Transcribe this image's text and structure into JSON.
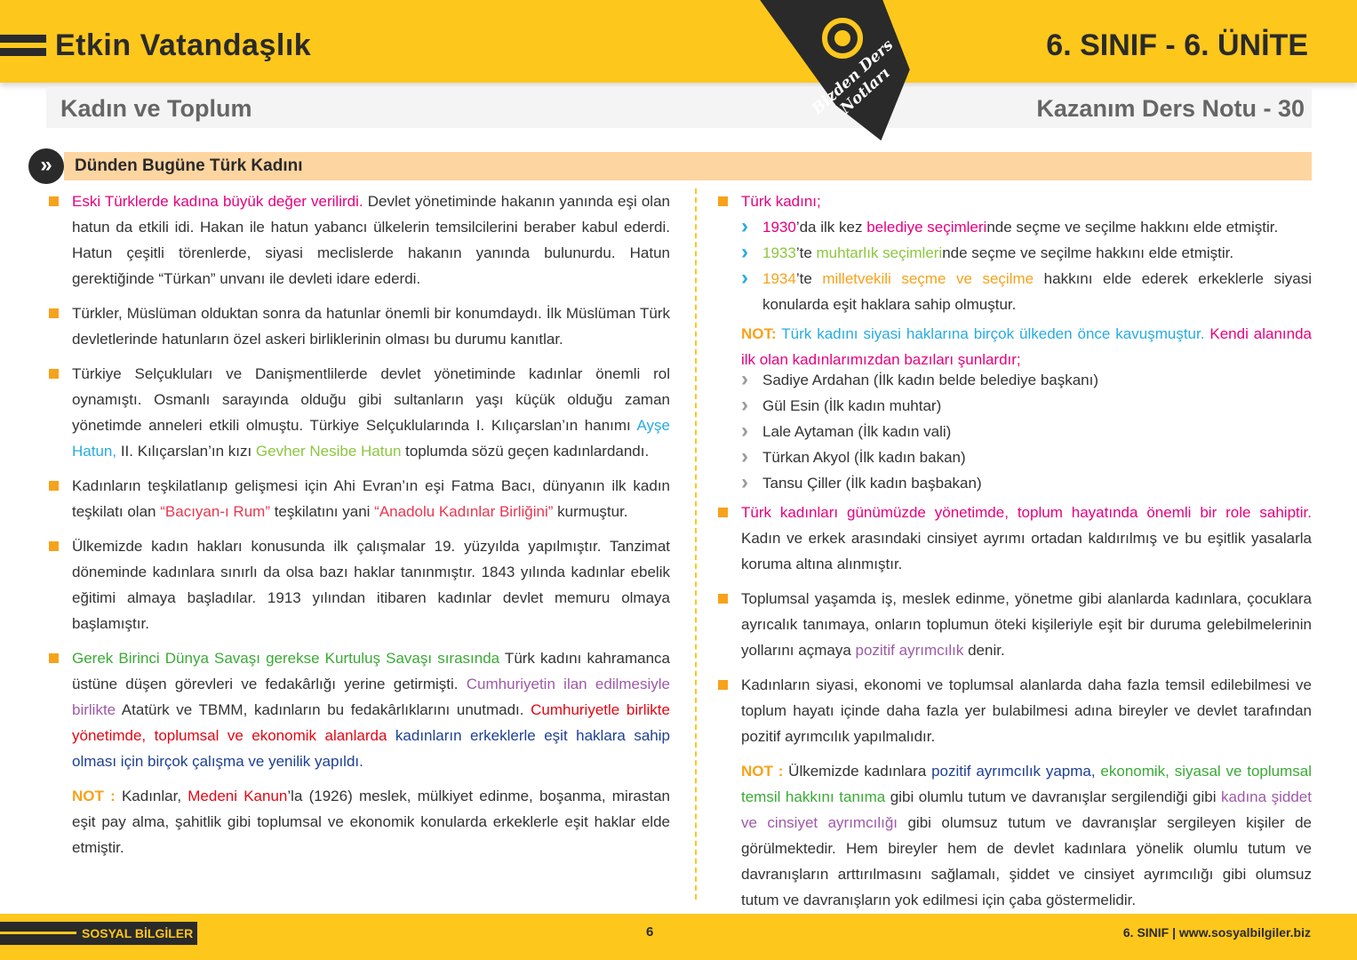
{
  "palette": {
    "pink": "#e6007e",
    "cyan": "#29abe2",
    "lgreen": "#8dc63f",
    "red": "#e8364f",
    "green": "#3aaa35",
    "purple": "#9e5aa8",
    "crimson": "#e30613",
    "navy": "#1d3f94",
    "orange": "#f7a21b",
    "text": "#333333",
    "accent": "#fdc71c"
  },
  "header": {
    "title": "Etkin Vatandaşlık",
    "unit": "6. SINIF - 6. ÜNİTE",
    "subtitle": "Kadın ve Toplum",
    "note_number": "Kazanım Ders Notu - 30",
    "badge": "Bizden Ders Notları"
  },
  "section": {
    "icon": "double-chevron-right-icon",
    "title": "Dünden Bugüne Türk Kadını"
  },
  "left": [
    {
      "type": "bullet",
      "segs": [
        {
          "t": "Eski Türklerde kadına büyük değer verilirdi.",
          "c": "pink"
        },
        {
          "t": " Devlet yönetiminde hakanın yanında eşi olan hatun da etkili idi. Hakan ile hatun yabancı ülkelerin temsilcilerini beraber kabul ederdi. Hatun çeşitli törenlerde, siyasi meclislerde hakanın yanında bulunurdu. Hatun gerektiğinde “Türkan” unvanı ile devleti idare ederdi."
        }
      ]
    },
    {
      "type": "bullet",
      "segs": [
        {
          "t": "Türkler, Müslüman olduktan sonra da hatunlar önemli bir konumdaydı. İlk Müslüman Türk devletlerinde hatunların özel askeri birliklerinin olması bu durumu kanıtlar."
        }
      ]
    },
    {
      "type": "bullet",
      "segs": [
        {
          "t": "Türkiye Selçukluları ve Danişmentlilerde devlet yönetiminde kadınlar önemli rol oynamıştı. Osmanlı sarayında olduğu gibi sultanların yaşı küçük olduğu zaman yönetimde anneleri etkili olmuştu. Türkiye Selçuklularında I. Kılıçarslan’ın hanımı "
        },
        {
          "t": "Ayşe Hatun,",
          "c": "cyan"
        },
        {
          "t": " II. Kılıçarslan’ın kızı "
        },
        {
          "t": "Gevher Nesibe Hatun",
          "c": "lgreen"
        },
        {
          "t": " toplumda sözü geçen kadınlardandı."
        }
      ]
    },
    {
      "type": "bullet",
      "segs": [
        {
          "t": "Kadınların teşkilatlanıp gelişmesi için Ahi Evran’ın eşi Fatma Bacı, dünyanın ilk kadın teşkilatı olan "
        },
        {
          "t": "“Bacıyan-ı Rum”",
          "c": "red"
        },
        {
          "t": " teşkilatını yani "
        },
        {
          "t": "“Anadolu Kadınlar Birliğini”",
          "c": "red"
        },
        {
          "t": " kurmuştur."
        }
      ]
    },
    {
      "type": "bullet",
      "segs": [
        {
          "t": "Ülkemizde kadın hakları konusunda ilk çalışmalar 19. yüzyılda yapılmıştır. Tanzimat döneminde kadınlara sınırlı da olsa bazı haklar tanınmıştır. 1843 yılında kadınlar ebelik eğitimi almaya başladılar. 1913 yılından itibaren kadınlar devlet memuru olmaya başlamıştır."
        }
      ]
    },
    {
      "type": "bullet",
      "segs": [
        {
          "t": "Gerek Birinci Dünya Savaşı gerekse Kurtuluş Savaşı sırasında",
          "c": "green"
        },
        {
          "t": " Türk kadını kahramanca üstüne düşen görevleri ve fedakârlığı yerine getirmişti. "
        },
        {
          "t": "Cumhuriyetin ilan edilmesiyle birlikte",
          "c": "purple"
        },
        {
          "t": " Atatürk ve TBMM, kadınların bu fedakârlıklarını unutmadı. "
        },
        {
          "t": "Cumhuriyetle birlikte yönetimde, toplumsal ve ekonomik alanlarda",
          "c": "crimson"
        },
        {
          "t": " kadınların erkeklerle eşit haklara sahip olması için birçok çalışma ve yenilik yapıldı.",
          "c": "navy"
        }
      ]
    },
    {
      "type": "note",
      "segs": [
        {
          "t": "NOT :",
          "c": "orange",
          "b": true
        },
        {
          "t": " Kadınlar, "
        },
        {
          "t": "Medeni Kanun",
          "c": "crimson"
        },
        {
          "t": "’la (1926) meslek, mülkiyet edinme, boşanma, mirastan eşit pay alma, şahitlik gibi toplumsal ve ekonomik konularda erkeklerle eşit haklar elde etmiştir."
        }
      ]
    }
  ],
  "right": [
    {
      "type": "bullet",
      "segs": [
        {
          "t": "Türk kadını;",
          "c": "pink"
        }
      ]
    },
    {
      "type": "sub",
      "arrow": "cyan",
      "items": [
        [
          {
            "t": "1930",
            "c": "pink"
          },
          {
            "t": "’da ilk kez "
          },
          {
            "t": "belediye seçimleri",
            "c": "pink"
          },
          {
            "t": "nde seçme ve seçilme hakkını elde etmiştir."
          }
        ],
        [
          {
            "t": "1933",
            "c": "lgreen"
          },
          {
            "t": "’te "
          },
          {
            "t": "muhtarlık seçimleri",
            "c": "lgreen"
          },
          {
            "t": "nde seçme ve seçilme hakkını elde etmiştir."
          }
        ],
        [
          {
            "t": "1934",
            "c": "orange"
          },
          {
            "t": "’te "
          },
          {
            "t": "milletvekili seçme ve seçilme",
            "c": "orange"
          },
          {
            "t": " hakkını elde ederek erkeklerle siyasi konularda eşit haklara sahip olmuştur."
          }
        ]
      ]
    },
    {
      "type": "note",
      "segs": [
        {
          "t": "NOT:",
          "c": "orange",
          "b": true
        },
        {
          "t": " Türk kadını siyasi haklarına birçok ülkeden önce kavuşmuştur.",
          "c": "cyan"
        },
        {
          "t": " Kendi alanında ilk olan kadınlarımızdan bazıları şunlardır;",
          "c": "pink"
        }
      ]
    },
    {
      "type": "sub",
      "arrow": "gray",
      "items": [
        [
          {
            "t": "Sadiye Ardahan (İlk kadın belde belediye başkanı)"
          }
        ],
        [
          {
            "t": "Gül Esin (İlk kadın muhtar)"
          }
        ],
        [
          {
            "t": "Lale Aytaman (İlk kadın vali)"
          }
        ],
        [
          {
            "t": "Türkan Akyol (İlk kadın bakan)"
          }
        ],
        [
          {
            "t": "Tansu Çiller (İlk kadın başbakan)"
          }
        ]
      ]
    },
    {
      "type": "bullet",
      "segs": [
        {
          "t": "Türk kadınları günümüzde yönetimde, toplum hayatında önemli bir role sahiptir.",
          "c": "pink"
        },
        {
          "t": " Kadın ve erkek arasındaki cinsiyet ayrımı ortadan kaldırılmış ve bu eşitlik yasalarla koruma altına alınmıştır."
        }
      ]
    },
    {
      "type": "bullet",
      "segs": [
        {
          "t": "Toplumsal yaşamda iş, meslek edinme, yönetme gibi alanlarda kadınlara, çocuklara ayrıcalık tanımaya, onların toplumun öteki kişileriyle eşit bir duruma gelebilmelerinin yollarını açmaya "
        },
        {
          "t": "pozitif ayrımcılık",
          "c": "purple"
        },
        {
          "t": " denir."
        }
      ]
    },
    {
      "type": "bullet",
      "segs": [
        {
          "t": "Kadınların siyasi, ekonomi ve toplumsal alanlarda daha fazla temsil edilebilmesi ve toplum hayatı içinde daha fazla yer bulabilmesi adına bireyler ve devlet tarafından pozitif ayrımcılık yapılmalıdır."
        }
      ]
    },
    {
      "type": "note",
      "segs": [
        {
          "t": "NOT :",
          "c": "orange",
          "b": true
        },
        {
          "t": " Ülkemizde kadınlara "
        },
        {
          "t": "pozitif ayrımcılık yapma,",
          "c": "navy"
        },
        {
          "t": " ekonomik, siyasal ve toplumsal temsil hakkını tanıma",
          "c": "green"
        },
        {
          "t": " gibi olumlu tutum ve davranışlar sergilendiği gibi "
        },
        {
          "t": "kadına şiddet ve cinsiyet ayrımcılığı",
          "c": "purple"
        },
        {
          "t": " gibi olumsuz tutum ve davranışlar sergileyen kişiler de görülmektedir. Hem bireyler hem de devlet kadınlara yönelik olumlu tutum ve davranışların arttırılmasını sağlamalı, şiddet ve cinsiyet ayrımcılığı gibi olumsuz tutum ve davranışların yok edilmesi için çaba göstermelidir."
        }
      ]
    }
  ],
  "footer": {
    "subject": "SOSYAL BİLGİLER",
    "page": "6",
    "right": "6. SINIF | www.sosyalbilgiler.biz"
  }
}
